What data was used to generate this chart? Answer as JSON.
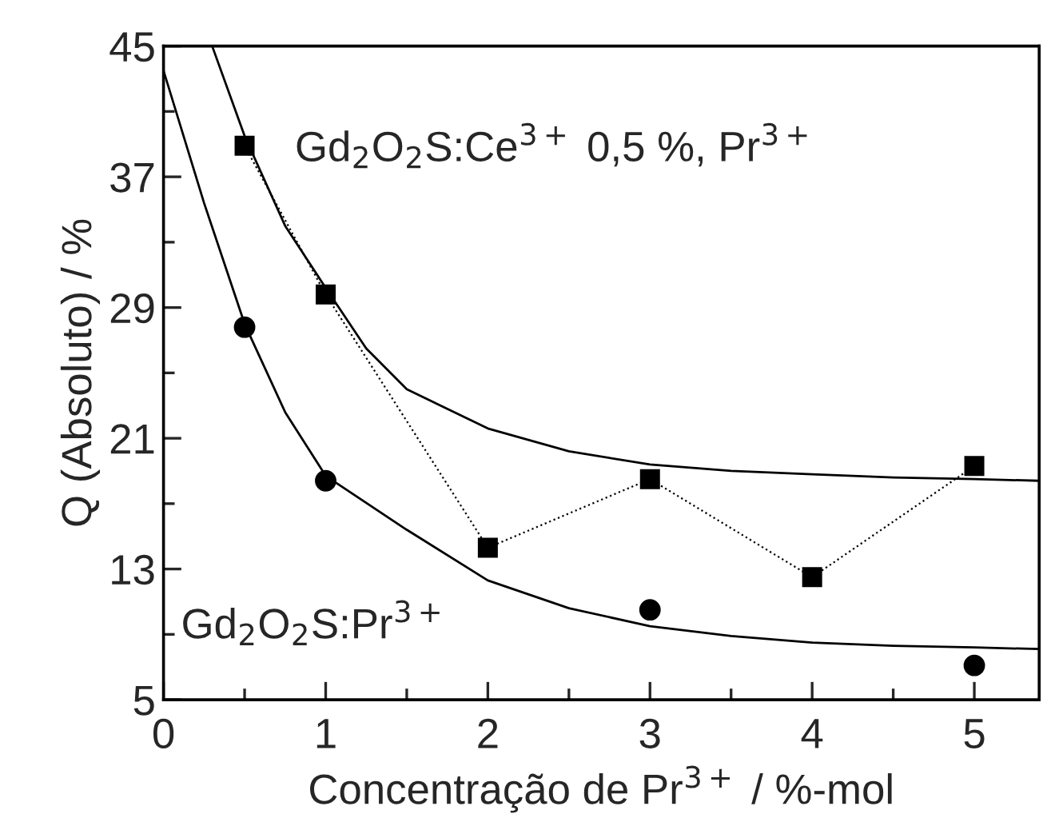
{
  "chart_data": {
    "type": "scatter",
    "xlabel": "Concentração de Pr$^{3+}$ / %-mol",
    "ylabel": "Q (Absoluto) / %",
    "xlim": [
      0,
      5.4
    ],
    "ylim": [
      5,
      45
    ],
    "xticks": [
      0,
      {
        "value": 0.5,
        "label": null
      },
      1,
      {
        "value": 1.5,
        "label": null
      },
      2,
      {
        "value": 2.5,
        "label": null
      },
      3,
      {
        "value": 3.5,
        "label": null
      },
      4,
      {
        "value": 4.5,
        "label": null
      },
      5
    ],
    "yticks": [
      5,
      {
        "value": 9,
        "label": null
      },
      13,
      {
        "value": 17,
        "label": null
      },
      21,
      {
        "value": 25,
        "label": null
      },
      29,
      {
        "value": 33,
        "label": null
      },
      37,
      {
        "value": 41,
        "label": null
      },
      45
    ],
    "grid": false,
    "legend": false,
    "series": [
      {
        "type": "line",
        "color": "#000000",
        "marker": "square",
        "line_style": "dotted",
        "x": [
          0.5,
          1,
          2,
          3,
          4,
          5
        ],
        "values": [
          38.9,
          29.8,
          14.3,
          18.5,
          12.5,
          19.3
        ]
      },
      {
        "color": "#000000",
        "marker": "circle",
        "x": [
          0.5,
          1,
          3,
          5
        ],
        "values": [
          27.8,
          18.4,
          10.5,
          7.1
        ]
      },
      {
        "type": "line",
        "color": "#000000",
        "marker": "none",
        "line_style": "solid",
        "x": [
          0.3,
          0.5,
          0.75,
          1,
          1.25,
          1.5,
          2,
          2.5,
          3,
          3.5,
          4,
          4.5,
          5,
          5.4
        ],
        "values": [
          45,
          39.5,
          34,
          30.2,
          26.5,
          24,
          21.6,
          20.2,
          19.4,
          19,
          18.8,
          18.6,
          18.5,
          18.4
        ]
      },
      {
        "type": "line",
        "color": "#000000",
        "marker": "none",
        "line_style": "solid",
        "x": [
          0,
          0.25,
          0.5,
          0.75,
          1,
          1.5,
          2,
          2.5,
          3,
          3.5,
          4,
          4.5,
          5,
          5.4
        ],
        "values": [
          43.5,
          35.4,
          28,
          22.6,
          18.7,
          15.4,
          12.3,
          10.6,
          9.5,
          8.9,
          8.5,
          8.3,
          8.2,
          8.1
        ]
      }
    ],
    "annotations": [
      "Gd$_{2}$O$_{2}$S:Ce$^{3+}$ 0,5 %, Pr$^{3+}$",
      "Gd$_{2}$O$_{2}$S:Pr$^{3+}$"
    ]
  }
}
